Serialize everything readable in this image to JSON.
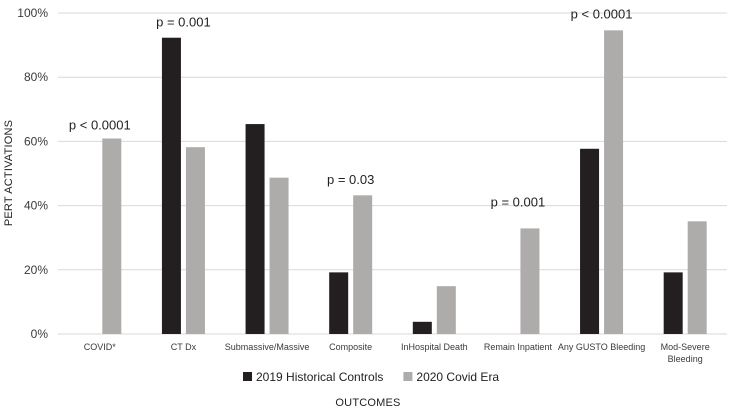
{
  "chart_data": {
    "type": "bar",
    "title": "",
    "xlabel": "OUTCOMES",
    "ylabel": "PERT ACTIVATIONS",
    "ylim": [
      0,
      100
    ],
    "y_ticks": [
      0,
      20,
      40,
      60,
      80,
      100
    ],
    "y_tick_labels": [
      "0%",
      "20%",
      "40%",
      "60%",
      "80%",
      "100%"
    ],
    "grid": "horizontal",
    "legend_position": "bottom",
    "categories": [
      [
        "COVID*"
      ],
      [
        "CT Dx"
      ],
      [
        "Submassive/Massive"
      ],
      [
        "Composite"
      ],
      [
        "InHospital Death"
      ],
      [
        "Remain Inpatient"
      ],
      [
        "Any GUSTO Bleeding"
      ],
      [
        "Mod-Severe",
        "Bleeding"
      ]
    ],
    "series": [
      {
        "name": "2019 Historical Controls",
        "color": "#231f20",
        "values": [
          0,
          92.3,
          65.4,
          19.2,
          3.8,
          0,
          57.7,
          19.2
        ]
      },
      {
        "name": "2020 Covid Era",
        "color": "#aeabab",
        "values": [
          60.9,
          58.2,
          48.7,
          43.2,
          14.9,
          32.9,
          94.6,
          35.1
        ]
      }
    ],
    "annotations": [
      {
        "category_index": 0,
        "text": "p < 0.0001",
        "y": 65
      },
      {
        "category_index": 1,
        "text": "p = 0.001",
        "y": 97
      },
      {
        "category_index": 3,
        "text": "p = 0.03",
        "y": 48
      },
      {
        "category_index": 5,
        "text": "p = 0.001",
        "y": 41
      },
      {
        "category_index": 6,
        "text": "p  < 0.0001",
        "y": 99.5
      }
    ]
  }
}
